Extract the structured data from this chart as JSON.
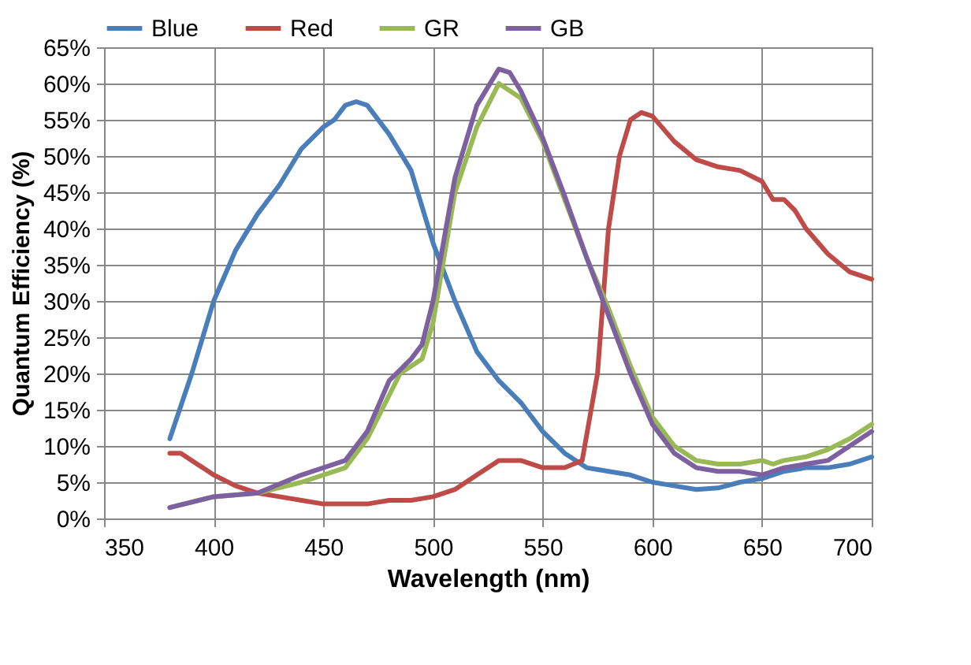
{
  "chart_data": {
    "type": "line",
    "xlabel": "Wavelength (nm)",
    "ylabel": "Quantum Efficiency (%)",
    "xlim": [
      350,
      700
    ],
    "xticks": [
      350,
      400,
      450,
      500,
      550,
      600,
      650,
      700
    ],
    "ylim": [
      0,
      65
    ],
    "yticks": [
      {
        "value": 0,
        "label": "0%"
      },
      {
        "value": 5,
        "label": "5%"
      },
      {
        "value": 10,
        "label": "10%"
      },
      {
        "value": 15,
        "label": "15%"
      },
      {
        "value": 20,
        "label": "20%"
      },
      {
        "value": 25,
        "label": "25%"
      },
      {
        "value": 30,
        "label": "30%"
      },
      {
        "value": 35,
        "label": "35%"
      },
      {
        "value": 40,
        "label": "40%"
      },
      {
        "value": 45,
        "label": "45%"
      },
      {
        "value": 50,
        "label": "50%"
      },
      {
        "value": 55,
        "label": "55%"
      },
      {
        "value": 60,
        "label": "60%"
      },
      {
        "value": 65,
        "label": "65%"
      }
    ],
    "grid": true,
    "legend": "top",
    "line_style": "solid",
    "series": [
      {
        "name": "Blue",
        "color": "#4a7ebb",
        "x": [
          380,
          390,
          400,
          410,
          420,
          430,
          440,
          450,
          455,
          460,
          465,
          470,
          480,
          490,
          500,
          510,
          520,
          530,
          540,
          550,
          560,
          570,
          580,
          590,
          600,
          610,
          620,
          630,
          640,
          650,
          660,
          670,
          680,
          690,
          700
        ],
        "values": [
          11,
          20,
          30,
          37,
          42,
          46,
          51,
          54,
          55,
          57,
          57.5,
          57,
          53,
          48,
          38,
          30,
          23,
          19,
          16,
          12,
          9,
          7,
          6.5,
          6,
          5,
          4.5,
          4,
          4.2,
          5,
          5.5,
          6.5,
          7,
          7,
          7.5,
          8.5
        ]
      },
      {
        "name": "Red",
        "color": "#be4b48",
        "x": [
          380,
          385,
          390,
          400,
          410,
          420,
          430,
          440,
          450,
          470,
          480,
          490,
          500,
          510,
          520,
          530,
          540,
          550,
          560,
          568,
          575,
          580,
          585,
          590,
          595,
          600,
          610,
          620,
          630,
          640,
          650,
          655,
          660,
          665,
          670,
          680,
          690,
          700
        ],
        "values": [
          9,
          9,
          8,
          6,
          4.5,
          3.5,
          3,
          2.5,
          2,
          2,
          2.5,
          2.5,
          3,
          4,
          6,
          8,
          8,
          7,
          7,
          8,
          20,
          40,
          50,
          55,
          56,
          55.5,
          52,
          49.5,
          48.5,
          48,
          46.5,
          44,
          44,
          42.5,
          40,
          36.5,
          34,
          33
        ]
      },
      {
        "name": "GR",
        "color": "#98b954",
        "x": [
          380,
          400,
          420,
          440,
          460,
          470,
          480,
          485,
          495,
          500,
          510,
          520,
          530,
          540,
          550,
          560,
          570,
          580,
          590,
          600,
          610,
          620,
          630,
          640,
          650,
          655,
          660,
          670,
          680,
          690,
          700
        ],
        "values": [
          1.5,
          3,
          3.5,
          5,
          7,
          11,
          17,
          20,
          22,
          27,
          45,
          54,
          60,
          58,
          52,
          44,
          36,
          29,
          21,
          14,
          10,
          8,
          7.5,
          7.5,
          8,
          7.5,
          8,
          8.5,
          9.5,
          11,
          13
        ]
      },
      {
        "name": "GB",
        "color": "#7d60a0",
        "x": [
          380,
          400,
          420,
          440,
          460,
          470,
          480,
          490,
          495,
          500,
          510,
          520,
          530,
          535,
          540,
          550,
          560,
          570,
          580,
          590,
          600,
          610,
          620,
          630,
          640,
          650,
          660,
          670,
          680,
          690,
          700
        ],
        "values": [
          1.5,
          3,
          3.5,
          6,
          8,
          12,
          19,
          22,
          24,
          30,
          47,
          57,
          62,
          61.5,
          59,
          52.5,
          44.5,
          36,
          28,
          20,
          13,
          9,
          7,
          6.5,
          6.5,
          6,
          7,
          7.5,
          8,
          10,
          12
        ]
      }
    ]
  }
}
